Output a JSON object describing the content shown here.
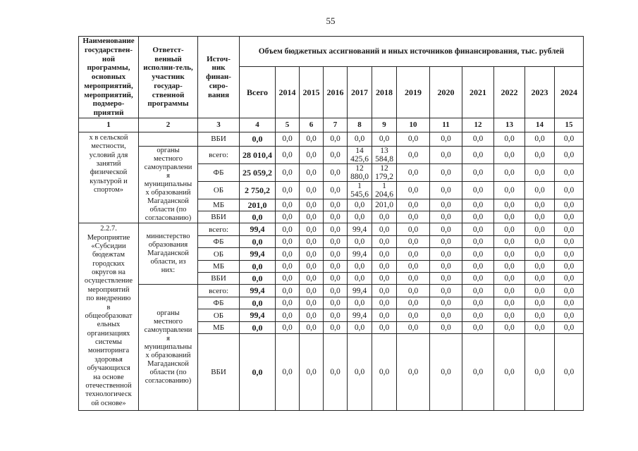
{
  "page": {
    "number": "55"
  },
  "colors": {
    "ink": "#1a1a1a",
    "paper": "#ffffff"
  },
  "table": {
    "header": {
      "col1": "Наименование\nгосударствен-\nной\nпрограммы,\nосновных\nмероприятий,\nмероприятий,\nподмеро-\nприятий",
      "col2": "Ответст-\nвенный\nисполни-тель,\nучастник\nгосудар-\nственной\nпрограммы",
      "col3": "Источ-\nник\nфинан-\nсиро-\nвания",
      "span": "Объем бюджетных ассигнований и иных источников финансирования, тыс. рублей",
      "year_cols": [
        "Всего",
        "2014",
        "2015",
        "2016",
        "2017",
        "2018",
        "2019",
        "2020",
        "2021",
        "2022",
        "2023",
        "2024"
      ],
      "number_row": [
        "1",
        "2",
        "3",
        "4",
        "5",
        "6",
        "7",
        "8",
        "9",
        "10",
        "11",
        "12",
        "13",
        "14",
        "15"
      ]
    },
    "sections": [
      {
        "program": "х в сельской\nместности,\nусловий для\nзанятий\nфизической\nкультурой и\nспортом»",
        "blocks": [
          {
            "executor": "",
            "rows": [
              {
                "source": "ВБИ",
                "values": [
                  "0,0",
                  "0,0",
                  "0,0",
                  "0,0",
                  "0,0",
                  "0,0",
                  "0,0",
                  "0,0",
                  "0,0",
                  "0,0",
                  "0,0",
                  "0,0"
                ]
              }
            ]
          },
          {
            "executor": "органы\nместного\nсамоуправлени\nя\nмуниципальны\nх образований\nМагаданской\nобласти (по\nсогласованию)",
            "rows": [
              {
                "source": "всего:",
                "values": [
                  "28 010,4",
                  "0,0",
                  "0,0",
                  "0,0",
                  "14 425,6",
                  "13 584,8",
                  "0,0",
                  "0,0",
                  "0,0",
                  "0,0",
                  "0,0",
                  "0,0"
                ]
              },
              {
                "source": "ФБ",
                "values": [
                  "25 059,2",
                  "0,0",
                  "0,0",
                  "0,0",
                  "12 880,0",
                  "12 179,2",
                  "0,0",
                  "0,0",
                  "0,0",
                  "0,0",
                  "0,0",
                  "0,0"
                ]
              },
              {
                "source": "ОБ",
                "values": [
                  "2 750,2",
                  "0,0",
                  "0,0",
                  "0,0",
                  "1 545,6",
                  "1 204,6",
                  "0,0",
                  "0,0",
                  "0,0",
                  "0,0",
                  "0,0",
                  "0,0"
                ]
              },
              {
                "source": "МБ",
                "values": [
                  "201,0",
                  "0,0",
                  "0,0",
                  "0,0",
                  "0,0",
                  "201,0",
                  "0,0",
                  "0,0",
                  "0,0",
                  "0,0",
                  "0,0",
                  "0,0"
                ]
              },
              {
                "source": "ВБИ",
                "values": [
                  "0,0",
                  "0,0",
                  "0,0",
                  "0,0",
                  "0,0",
                  "0,0",
                  "0,0",
                  "0,0",
                  "0,0",
                  "0,0",
                  "0,0",
                  "0,0"
                ]
              }
            ]
          }
        ]
      },
      {
        "program": "2.2.7.\nМероприятие\n«Субсидии\nбюдежтам\nгородских\nокругов на\nосуществление\nмероприятий\nпо внедрению\nв\nобщеобразоват\nельных\nорганизациях\nсистемы\nмониторинга\nздоровья\nобучающихся\nна основе\nотечественной\nтехнологическ\nой основе»",
        "blocks": [
          {
            "executor": "министерство\nобразования\nМагаданской\nобласти, из\nних:",
            "rows": [
              {
                "source": "всего:",
                "values": [
                  "99,4",
                  "0,0",
                  "0,0",
                  "0,0",
                  "99,4",
                  "0,0",
                  "0,0",
                  "0,0",
                  "0,0",
                  "0,0",
                  "0,0",
                  "0,0"
                ]
              },
              {
                "source": "ФБ",
                "values": [
                  "0,0",
                  "0,0",
                  "0,0",
                  "0,0",
                  "0,0",
                  "0,0",
                  "0,0",
                  "0,0",
                  "0,0",
                  "0,0",
                  "0,0",
                  "0,0"
                ]
              },
              {
                "source": "ОБ",
                "values": [
                  "99,4",
                  "0,0",
                  "0,0",
                  "0,0",
                  "99,4",
                  "0,0",
                  "0,0",
                  "0,0",
                  "0,0",
                  "0,0",
                  "0,0",
                  "0,0"
                ]
              },
              {
                "source": "МБ",
                "values": [
                  "0,0",
                  "0,0",
                  "0,0",
                  "0,0",
                  "0,0",
                  "0,0",
                  "0,0",
                  "0,0",
                  "0,0",
                  "0,0",
                  "0,0",
                  "0,0"
                ]
              },
              {
                "source": "ВБИ",
                "values": [
                  "0,0",
                  "0,0",
                  "0,0",
                  "0,0",
                  "0,0",
                  "0,0",
                  "0,0",
                  "0,0",
                  "0,0",
                  "0,0",
                  "0,0",
                  "0,0"
                ]
              }
            ]
          },
          {
            "executor": "органы\nместного\nсамоуправлени\nя\nмуниципальны\nх образований\nМагаданской\nобласти (по\nсогласованию)",
            "rows": [
              {
                "source": "всего:",
                "values": [
                  "99,4",
                  "0,0",
                  "0,0",
                  "0,0",
                  "99,4",
                  "0,0",
                  "0,0",
                  "0,0",
                  "0,0",
                  "0,0",
                  "0,0",
                  "0,0"
                ]
              },
              {
                "source": "ФБ",
                "values": [
                  "0,0",
                  "0,0",
                  "0,0",
                  "0,0",
                  "0,0",
                  "0,0",
                  "0,0",
                  "0,0",
                  "0,0",
                  "0,0",
                  "0,0",
                  "0,0"
                ]
              },
              {
                "source": "ОБ",
                "values": [
                  "99,4",
                  "0,0",
                  "0,0",
                  "0,0",
                  "99,4",
                  "0,0",
                  "0,0",
                  "0,0",
                  "0,0",
                  "0,0",
                  "0,0",
                  "0,0"
                ]
              },
              {
                "source": "МБ",
                "values": [
                  "0,0",
                  "0,0",
                  "0,0",
                  "0,0",
                  "0,0",
                  "0,0",
                  "0,0",
                  "0,0",
                  "0,0",
                  "0,0",
                  "0,0",
                  "0,0"
                ]
              },
              {
                "source": "ВБИ",
                "values": [
                  "0,0",
                  "0,0",
                  "0,0",
                  "0,0",
                  "0,0",
                  "0,0",
                  "0,0",
                  "0,0",
                  "0,0",
                  "0,0",
                  "0,0",
                  "0,0"
                ]
              }
            ]
          }
        ]
      }
    ]
  }
}
